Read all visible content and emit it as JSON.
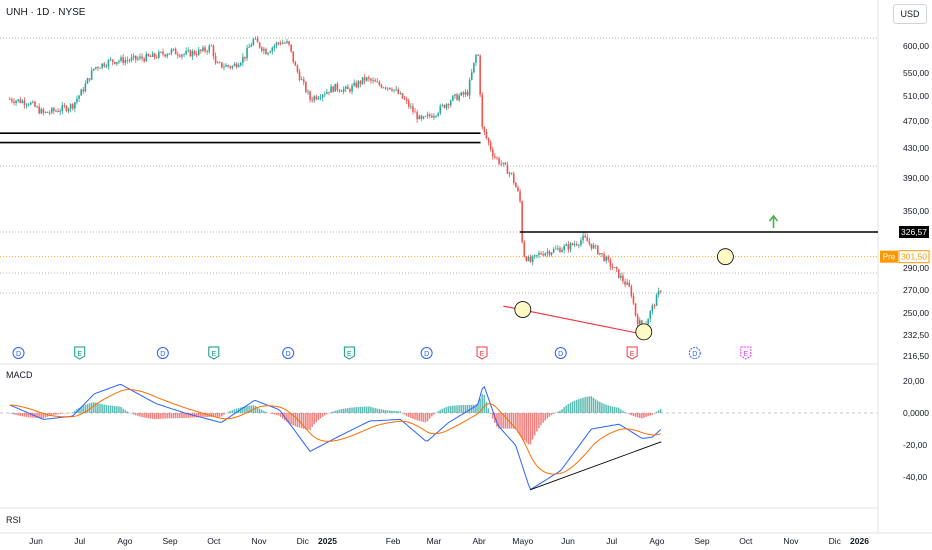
{
  "header": {
    "symbol": "UNH · 1D · NYSE",
    "currency": "USD"
  },
  "colors": {
    "up": "#26a69a",
    "down": "#ef5350",
    "price_line": "#ff9800",
    "macd_line": "#2962ff",
    "signal_line": "#ff6d00",
    "support_line": "#f23645",
    "marker_circle": "#fff9c4",
    "arrow": "#4caf50",
    "dividend": "#2962ff",
    "earnings_past": "#089981",
    "earnings_recent": "#f23645",
    "earnings_future": "#e040fb"
  },
  "chart_data": [
    {
      "type": "candlestick",
      "name": "price",
      "x_tick_labels": [
        "Jun",
        "Jul",
        "Ago",
        "Sep",
        "Oct",
        "Nov",
        "Dic",
        "2025",
        "Feb",
        "Mar",
        "Abr",
        "Mayo",
        "Jun",
        "Jul",
        "Ago",
        "Sep",
        "Oct",
        "Nov",
        "Dic",
        "2026"
      ],
      "y_tick_labels": [
        "600,00",
        "550,00",
        "510,00",
        "470,00",
        "430,00",
        "390,00",
        "350,00",
        "290,00",
        "270,00",
        "250,00",
        "232,50",
        "216,50"
      ],
      "price_labels": {
        "last": "326,57",
        "pre_tag": "Pre",
        "pre_value": "301,50"
      },
      "horizontal_levels": [
        326.57,
        301.5
      ],
      "close_path": [
        {
          "x": "2024-05-28",
          "y": 505
        },
        {
          "x": "2024-06-10",
          "y": 500
        },
        {
          "x": "2024-06-20",
          "y": 482
        },
        {
          "x": "2024-07-01",
          "y": 488
        },
        {
          "x": "2024-07-10",
          "y": 495
        },
        {
          "x": "2024-07-17",
          "y": 520
        },
        {
          "x": "2024-07-25",
          "y": 560
        },
        {
          "x": "2024-08-05",
          "y": 572
        },
        {
          "x": "2024-08-20",
          "y": 575
        },
        {
          "x": "2024-09-03",
          "y": 580
        },
        {
          "x": "2024-09-16",
          "y": 590
        },
        {
          "x": "2024-09-25",
          "y": 585
        },
        {
          "x": "2024-10-07",
          "y": 590
        },
        {
          "x": "2024-10-14",
          "y": 600
        },
        {
          "x": "2024-10-16",
          "y": 565
        },
        {
          "x": "2024-10-28",
          "y": 562
        },
        {
          "x": "2024-11-05",
          "y": 580
        },
        {
          "x": "2024-11-11",
          "y": 612
        },
        {
          "x": "2024-11-20",
          "y": 590
        },
        {
          "x": "2024-11-29",
          "y": 608
        },
        {
          "x": "2024-12-05",
          "y": 605
        },
        {
          "x": "2024-12-10",
          "y": 560
        },
        {
          "x": "2024-12-20",
          "y": 505
        },
        {
          "x": "2025-01-06",
          "y": 525
        },
        {
          "x": "2025-01-15",
          "y": 520
        },
        {
          "x": "2025-01-27",
          "y": 540
        },
        {
          "x": "2025-02-05",
          "y": 530
        },
        {
          "x": "2025-02-14",
          "y": 525
        },
        {
          "x": "2025-02-24",
          "y": 500
        },
        {
          "x": "2025-03-06",
          "y": 470
        },
        {
          "x": "2025-03-17",
          "y": 485
        },
        {
          "x": "2025-03-27",
          "y": 505
        },
        {
          "x": "2025-04-07",
          "y": 515
        },
        {
          "x": "2025-04-14",
          "y": 595
        },
        {
          "x": "2025-04-17",
          "y": 460
        },
        {
          "x": "2025-04-25",
          "y": 420
        },
        {
          "x": "2025-05-07",
          "y": 395
        },
        {
          "x": "2025-05-13",
          "y": 365
        },
        {
          "x": "2025-05-15",
          "y": 305
        },
        {
          "x": "2025-05-20",
          "y": 296
        },
        {
          "x": "2025-05-27",
          "y": 305
        },
        {
          "x": "2025-06-05",
          "y": 308
        },
        {
          "x": "2025-06-16",
          "y": 312
        },
        {
          "x": "2025-06-26",
          "y": 320
        },
        {
          "x": "2025-07-07",
          "y": 305
        },
        {
          "x": "2025-07-16",
          "y": 290
        },
        {
          "x": "2025-07-28",
          "y": 270
        },
        {
          "x": "2025-08-01",
          "y": 245
        },
        {
          "x": "2025-08-06",
          "y": 238
        },
        {
          "x": "2025-08-12",
          "y": 255
        },
        {
          "x": "2025-08-18",
          "y": 272
        }
      ],
      "annotations": {
        "resistance_zone": [
          452,
          438
        ],
        "support_line": {
          "from": {
            "x": "2025-05-14",
            "y": 256
          },
          "to": {
            "x": "2025-08-06",
            "y": 233
          }
        },
        "circles": [
          {
            "x": "2025-05-15",
            "y": 253
          },
          {
            "x": "2025-08-06",
            "y": 235
          },
          {
            "x": "2025-10-01",
            "y": 301.5
          }
        ],
        "up_arrow": {
          "x": "2025-11-03",
          "y": 340
        }
      },
      "events": [
        {
          "kind": "D",
          "label": "D",
          "x": "2024-06-03",
          "status": "past"
        },
        {
          "kind": "E",
          "label": "E",
          "x": "2024-07-15",
          "status": "past"
        },
        {
          "kind": "D",
          "label": "D",
          "x": "2024-09-10",
          "status": "past"
        },
        {
          "kind": "E",
          "label": "E",
          "x": "2024-10-15",
          "status": "past"
        },
        {
          "kind": "D",
          "label": "D",
          "x": "2024-12-05",
          "status": "past"
        },
        {
          "kind": "E",
          "label": "E",
          "x": "2025-01-16",
          "status": "past"
        },
        {
          "kind": "D",
          "label": "D",
          "x": "2025-03-10",
          "status": "past"
        },
        {
          "kind": "E",
          "label": "E",
          "x": "2025-04-17",
          "status": "recent"
        },
        {
          "kind": "D",
          "label": "D",
          "x": "2025-06-10",
          "status": "past"
        },
        {
          "kind": "E",
          "label": "E",
          "x": "2025-07-29",
          "status": "recent"
        },
        {
          "kind": "D",
          "label": "D",
          "x": "2025-09-10",
          "status": "future"
        },
        {
          "kind": "E",
          "label": "E",
          "x": "2025-10-15",
          "status": "future"
        }
      ]
    },
    {
      "type": "line+histogram",
      "name": "MACD",
      "title": "MACD",
      "y_tick_labels": [
        "20,00",
        "0,0000",
        "-20,00",
        "-40,00"
      ],
      "macd": [
        {
          "x": "2024-05-28",
          "y": 5
        },
        {
          "x": "2024-06-20",
          "y": -4
        },
        {
          "x": "2024-07-10",
          "y": -2
        },
        {
          "x": "2024-07-25",
          "y": 12
        },
        {
          "x": "2024-08-12",
          "y": 18
        },
        {
          "x": "2024-09-05",
          "y": 6
        },
        {
          "x": "2024-09-25",
          "y": 0
        },
        {
          "x": "2024-10-20",
          "y": -6
        },
        {
          "x": "2024-11-12",
          "y": 8
        },
        {
          "x": "2024-11-29",
          "y": 2
        },
        {
          "x": "2024-12-20",
          "y": -24
        },
        {
          "x": "2025-01-10",
          "y": -14
        },
        {
          "x": "2025-01-30",
          "y": -5
        },
        {
          "x": "2025-02-20",
          "y": -4
        },
        {
          "x": "2025-03-10",
          "y": -18
        },
        {
          "x": "2025-03-25",
          "y": -6
        },
        {
          "x": "2025-04-14",
          "y": 5
        },
        {
          "x": "2025-04-18",
          "y": 18
        },
        {
          "x": "2025-04-28",
          "y": -8
        },
        {
          "x": "2025-05-10",
          "y": -20
        },
        {
          "x": "2025-05-20",
          "y": -48
        },
        {
          "x": "2025-06-10",
          "y": -36
        },
        {
          "x": "2025-07-01",
          "y": -10
        },
        {
          "x": "2025-07-20",
          "y": -7
        },
        {
          "x": "2025-08-05",
          "y": -16
        },
        {
          "x": "2025-08-12",
          "y": -15
        },
        {
          "x": "2025-08-18",
          "y": -10
        }
      ],
      "trend_line": {
        "from": {
          "x": "2025-05-20",
          "y": -48
        },
        "to": {
          "x": "2025-08-18",
          "y": -18
        }
      }
    },
    {
      "type": "line",
      "name": "RSI",
      "title": "RSI"
    }
  ]
}
